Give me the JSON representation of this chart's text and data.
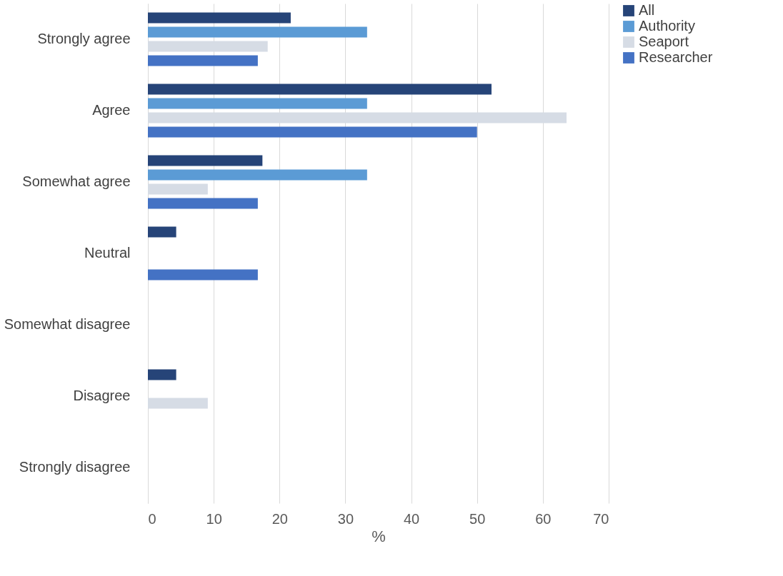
{
  "chart_data": {
    "type": "bar",
    "orientation": "horizontal",
    "xlabel": "%",
    "categories": [
      "Strongly agree",
      "Agree",
      "Somewhat agree",
      "Neutral",
      "Somewhat disagree",
      "Disagree",
      "Strongly disagree"
    ],
    "series": [
      {
        "name": "All",
        "color": "#264478",
        "values": [
          21.7,
          52.2,
          17.4,
          4.3,
          0,
          4.3,
          0
        ]
      },
      {
        "name": "Authority",
        "color": "#5b9bd5",
        "values": [
          33.3,
          33.3,
          33.3,
          0,
          0,
          0,
          0
        ]
      },
      {
        "name": "Seaport",
        "color": "#d6dce5",
        "values": [
          18.2,
          63.6,
          9.1,
          0,
          0,
          9.1,
          0
        ]
      },
      {
        "name": "Researcher",
        "color": "#4472c4",
        "values": [
          16.7,
          50,
          16.7,
          16.7,
          0,
          0,
          0
        ]
      }
    ],
    "xlim": [
      0,
      70
    ],
    "xticks": [
      0,
      10,
      20,
      30,
      40,
      50,
      60,
      70
    ],
    "grid": "x",
    "legend": "right"
  }
}
